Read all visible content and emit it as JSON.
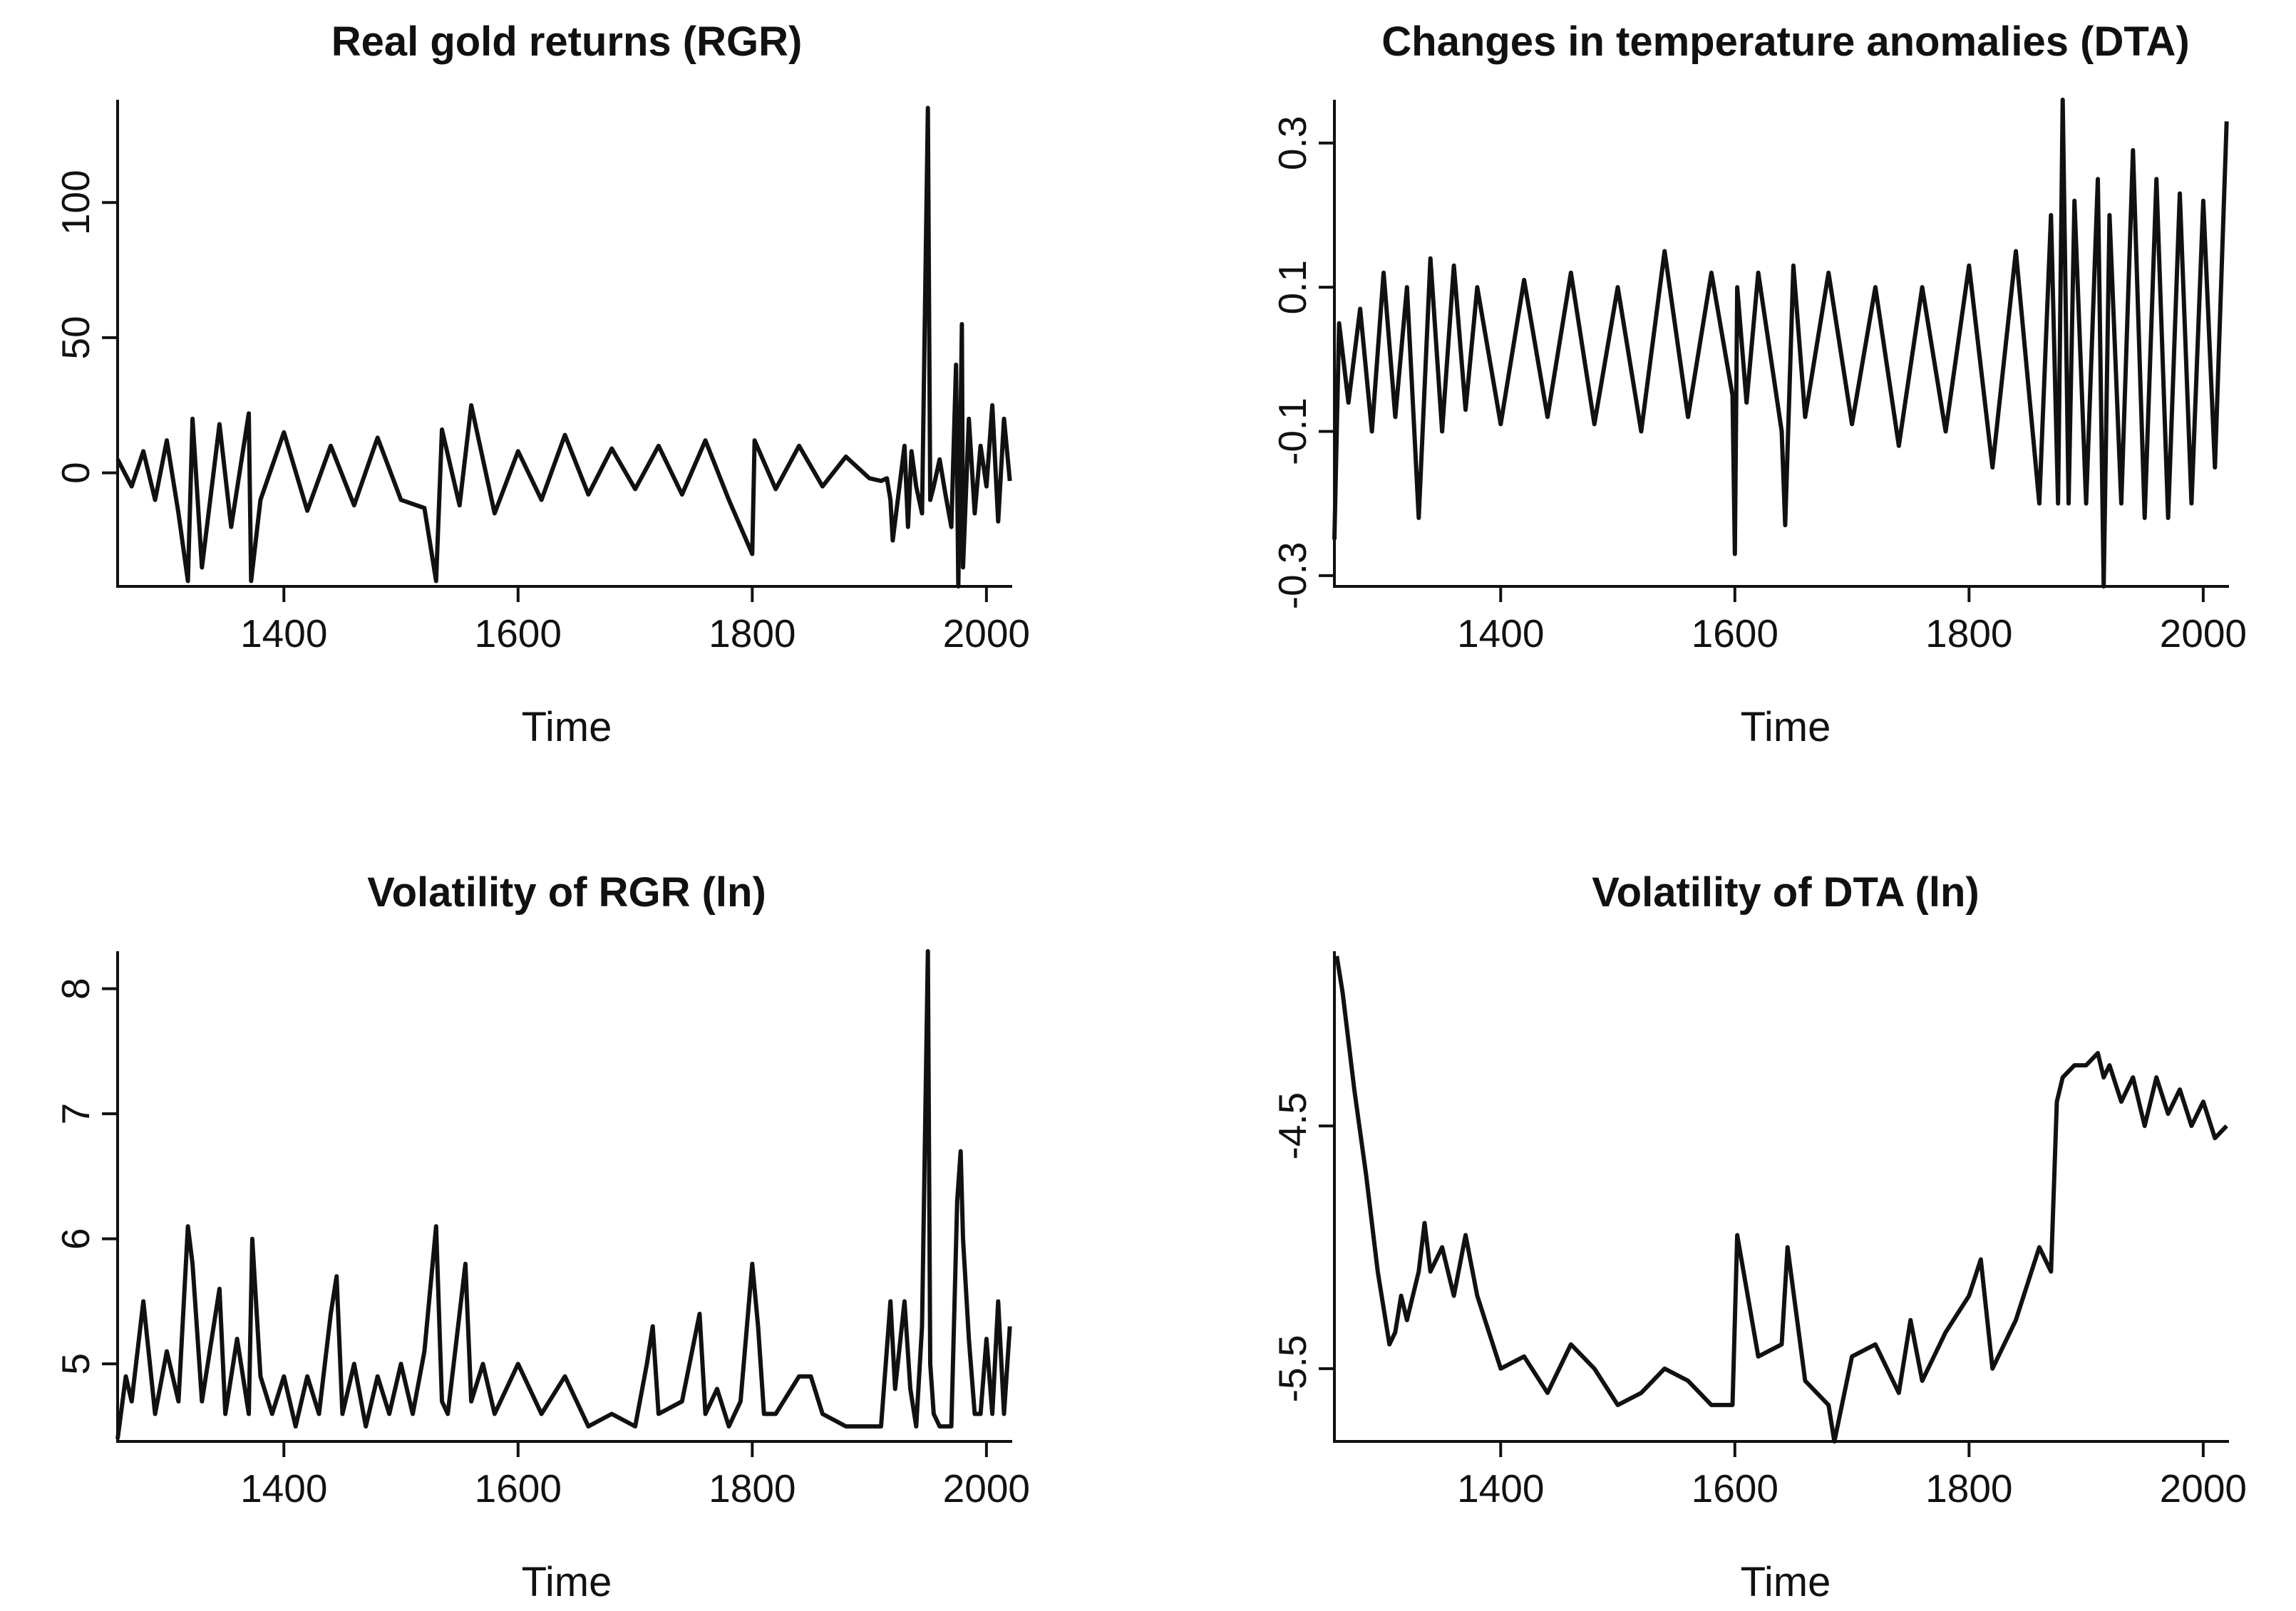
{
  "chart_data": [
    {
      "type": "line",
      "title": "Real gold returns (RGR)",
      "xlabel": "Time",
      "ylabel": "",
      "xlim": [
        1258,
        2022
      ],
      "ylim": [
        -42,
        138
      ],
      "xticks": [
        1400,
        1600,
        1800,
        2000
      ],
      "xtick_labels": [
        "1400",
        "1600",
        "1800",
        "2000"
      ],
      "yticks": [
        0,
        50,
        100
      ],
      "ytick_labels": [
        "0",
        "50",
        "100"
      ],
      "series": [
        {
          "name": "RGR",
          "x": [
            1258,
            1270,
            1280,
            1290,
            1300,
            1310,
            1318,
            1322,
            1330,
            1345,
            1355,
            1370,
            1372,
            1380,
            1400,
            1420,
            1440,
            1460,
            1480,
            1500,
            1520,
            1530,
            1535,
            1550,
            1560,
            1580,
            1600,
            1620,
            1640,
            1660,
            1680,
            1700,
            1720,
            1740,
            1760,
            1780,
            1800,
            1802,
            1820,
            1840,
            1860,
            1880,
            1900,
            1910,
            1915,
            1918,
            1920,
            1930,
            1933,
            1936,
            1940,
            1945,
            1950,
            1952,
            1955,
            1960,
            1965,
            1970,
            1974,
            1976,
            1979,
            1980,
            1985,
            1990,
            1995,
            2000,
            2005,
            2010,
            2015,
            2020
          ],
          "y": [
            5,
            -5,
            8,
            -10,
            12,
            -15,
            -40,
            20,
            -35,
            18,
            -20,
            22,
            -40,
            -10,
            15,
            -14,
            10,
            -12,
            13,
            -10,
            -13,
            -40,
            16,
            -12,
            25,
            -15,
            8,
            -10,
            14,
            -8,
            9,
            -6,
            10,
            -8,
            12,
            -10,
            -30,
            12,
            -6,
            10,
            -5,
            6,
            -2,
            -3,
            -2,
            -10,
            -25,
            10,
            -20,
            8,
            -5,
            -15,
            135,
            -10,
            -5,
            5,
            -8,
            -20,
            40,
            -42,
            55,
            -35,
            20,
            -15,
            10,
            -5,
            25,
            -18,
            20,
            -3
          ]
        }
      ]
    },
    {
      "type": "line",
      "title": "Changes in temperature anomalies (DTA)",
      "xlabel": "Time",
      "ylabel": "",
      "xlim": [
        1258,
        2022
      ],
      "ylim": [
        -0.315,
        0.36
      ],
      "xticks": [
        1400,
        1600,
        1800,
        2000
      ],
      "xtick_labels": [
        "1400",
        "1600",
        "1800",
        "2000"
      ],
      "yticks": [
        -0.3,
        -0.1,
        0.1,
        0.3
      ],
      "ytick_labels": [
        "-0.3",
        "-0.1",
        "0.1",
        "0.3"
      ],
      "series": [
        {
          "name": "DTA",
          "x": [
            1258,
            1262,
            1270,
            1280,
            1290,
            1300,
            1310,
            1320,
            1330,
            1340,
            1350,
            1360,
            1370,
            1380,
            1400,
            1420,
            1440,
            1460,
            1480,
            1500,
            1520,
            1540,
            1560,
            1580,
            1598,
            1600,
            1602,
            1610,
            1620,
            1640,
            1643,
            1650,
            1660,
            1680,
            1700,
            1720,
            1740,
            1760,
            1780,
            1800,
            1820,
            1840,
            1860,
            1870,
            1876,
            1880,
            1885,
            1890,
            1900,
            1910,
            1915,
            1920,
            1930,
            1940,
            1950,
            1960,
            1970,
            1980,
            1990,
            2000,
            2010,
            2020
          ],
          "y": [
            -0.25,
            0.05,
            -0.06,
            0.07,
            -0.1,
            0.12,
            -0.08,
            0.1,
            -0.22,
            0.14,
            -0.1,
            0.13,
            -0.07,
            0.1,
            -0.09,
            0.11,
            -0.08,
            0.12,
            -0.09,
            0.1,
            -0.1,
            0.15,
            -0.08,
            0.12,
            -0.05,
            -0.27,
            0.1,
            -0.06,
            0.12,
            -0.1,
            -0.23,
            0.13,
            -0.08,
            0.12,
            -0.09,
            0.1,
            -0.12,
            0.1,
            -0.1,
            0.13,
            -0.15,
            0.15,
            -0.2,
            0.2,
            -0.2,
            0.36,
            -0.2,
            0.22,
            -0.2,
            0.25,
            -0.32,
            0.2,
            -0.2,
            0.29,
            -0.22,
            0.25,
            -0.22,
            0.23,
            -0.2,
            0.22,
            -0.15,
            0.33
          ]
        }
      ]
    },
    {
      "type": "line",
      "title": "Volatility of RGR (ln)",
      "xlabel": "Time",
      "ylabel": "",
      "xlim": [
        1258,
        2022
      ],
      "ylim": [
        4.38,
        8.3
      ],
      "xticks": [
        1400,
        1600,
        1800,
        2000
      ],
      "xtick_labels": [
        "1400",
        "1600",
        "1800",
        "2000"
      ],
      "yticks": [
        5,
        6,
        7,
        8
      ],
      "ytick_labels": [
        "5",
        "6",
        "7",
        "8"
      ],
      "series": [
        {
          "name": "Volatility of RGR",
          "x": [
            1258,
            1265,
            1270,
            1280,
            1290,
            1300,
            1310,
            1318,
            1322,
            1330,
            1340,
            1345,
            1350,
            1360,
            1370,
            1373,
            1380,
            1390,
            1400,
            1410,
            1420,
            1430,
            1440,
            1445,
            1450,
            1460,
            1470,
            1480,
            1490,
            1500,
            1510,
            1520,
            1530,
            1535,
            1540,
            1550,
            1555,
            1560,
            1570,
            1580,
            1600,
            1620,
            1640,
            1660,
            1680,
            1700,
            1710,
            1715,
            1720,
            1740,
            1755,
            1760,
            1770,
            1780,
            1790,
            1800,
            1805,
            1810,
            1820,
            1840,
            1850,
            1860,
            1880,
            1900,
            1910,
            1918,
            1922,
            1930,
            1935,
            1940,
            1945,
            1950,
            1952,
            1955,
            1960,
            1965,
            1970,
            1975,
            1978,
            1980,
            1985,
            1990,
            1995,
            2000,
            2005,
            2010,
            2015,
            2020
          ],
          "y": [
            4.4,
            4.9,
            4.7,
            5.5,
            4.6,
            5.1,
            4.7,
            6.1,
            5.8,
            4.7,
            5.3,
            5.6,
            4.6,
            5.2,
            4.6,
            6.0,
            4.9,
            4.6,
            4.9,
            4.5,
            4.9,
            4.6,
            5.4,
            5.7,
            4.6,
            5.0,
            4.5,
            4.9,
            4.6,
            5.0,
            4.6,
            5.1,
            6.1,
            4.7,
            4.6,
            5.4,
            5.8,
            4.7,
            5.0,
            4.6,
            5.0,
            4.6,
            4.9,
            4.5,
            4.6,
            4.5,
            5.0,
            5.3,
            4.6,
            4.7,
            5.4,
            4.6,
            4.8,
            4.5,
            4.7,
            5.8,
            5.3,
            4.6,
            4.6,
            4.9,
            4.9,
            4.6,
            4.5,
            4.5,
            4.5,
            5.5,
            4.8,
            5.5,
            4.8,
            4.5,
            5.3,
            8.3,
            5.0,
            4.6,
            4.5,
            4.5,
            4.5,
            6.3,
            6.7,
            6.0,
            5.2,
            4.6,
            4.6,
            5.2,
            4.6,
            5.5,
            4.6,
            5.3
          ]
        }
      ]
    },
    {
      "type": "line",
      "title": "Volatility of DTA (ln)",
      "xlabel": "Time",
      "ylabel": "",
      "xlim": [
        1258,
        2022
      ],
      "ylim": [
        -5.8,
        -3.78
      ],
      "xticks": [
        1400,
        1600,
        1800,
        2000
      ],
      "xtick_labels": [
        "1400",
        "1600",
        "1800",
        "2000"
      ],
      "yticks": [
        -5.5,
        -4.5
      ],
      "ytick_labels": [
        "-5.5",
        "-4.5"
      ],
      "series": [
        {
          "name": "Volatility of DTA",
          "x": [
            1260,
            1265,
            1275,
            1285,
            1295,
            1305,
            1310,
            1315,
            1320,
            1330,
            1335,
            1340,
            1350,
            1360,
            1370,
            1380,
            1390,
            1400,
            1420,
            1440,
            1460,
            1480,
            1500,
            1520,
            1540,
            1560,
            1580,
            1598,
            1602,
            1620,
            1640,
            1645,
            1660,
            1680,
            1685,
            1700,
            1720,
            1740,
            1750,
            1760,
            1780,
            1800,
            1810,
            1820,
            1840,
            1860,
            1870,
            1875,
            1880,
            1890,
            1900,
            1910,
            1915,
            1920,
            1930,
            1940,
            1950,
            1960,
            1970,
            1980,
            1990,
            2000,
            2010,
            2020
          ],
          "y": [
            -3.8,
            -3.95,
            -4.35,
            -4.7,
            -5.1,
            -5.4,
            -5.35,
            -5.2,
            -5.3,
            -5.1,
            -4.9,
            -5.1,
            -5.0,
            -5.2,
            -4.95,
            -5.2,
            -5.35,
            -5.5,
            -5.45,
            -5.6,
            -5.4,
            -5.5,
            -5.65,
            -5.6,
            -5.5,
            -5.55,
            -5.65,
            -5.65,
            -4.95,
            -5.45,
            -5.4,
            -5.0,
            -5.55,
            -5.65,
            -5.8,
            -5.45,
            -5.4,
            -5.6,
            -5.3,
            -5.55,
            -5.35,
            -5.2,
            -5.05,
            -5.5,
            -5.3,
            -5.0,
            -5.1,
            -4.4,
            -4.3,
            -4.25,
            -4.25,
            -4.2,
            -4.3,
            -4.25,
            -4.4,
            -4.3,
            -4.5,
            -4.3,
            -4.45,
            -4.35,
            -4.5,
            -4.4,
            -4.55,
            -4.5
          ]
        }
      ]
    }
  ]
}
